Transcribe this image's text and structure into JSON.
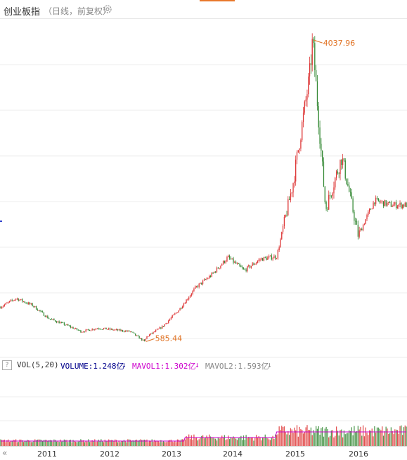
{
  "header": {
    "title": "创业板指",
    "subtitle": "（日线，前复权）",
    "settings_icon": "gear-icon"
  },
  "volume_bar": {
    "help": "?",
    "indicator": "VOL(5,20)",
    "volume": "VOLUME:1.248亿",
    "mavol1": "MAVOL1:1.302亿",
    "mavol2": "MAVOL2:1.593亿",
    "volume_color": "#00008b",
    "mavol1_color": "#cc00cc",
    "mavol2_color": "#888888"
  },
  "x_axis": {
    "scroll_left": "«",
    "ticks": [
      "2011",
      "2012",
      "2013",
      "2014",
      "2015",
      "2016"
    ]
  },
  "colors": {
    "up": "#dd3333",
    "down": "#338833",
    "annotation": "#e07020",
    "grid": "#eeeeee"
  },
  "chart_data": {
    "type": "candlestick",
    "title": "创业板指",
    "period": "daily",
    "adjustment": "forward-adjusted",
    "x": [
      "2010-09",
      "2010-12",
      "2011-03",
      "2011-06",
      "2011-09",
      "2011-12",
      "2012-03",
      "2012-06",
      "2012-09",
      "2012-12",
      "2013-03",
      "2013-06",
      "2013-09",
      "2013-12",
      "2014-03",
      "2014-06",
      "2014-09",
      "2014-12",
      "2015-03",
      "2015-06",
      "2015-09",
      "2015-12",
      "2016-03",
      "2016-06",
      "2016-09"
    ],
    "close": [
      980,
      1080,
      1000,
      850,
      780,
      700,
      740,
      720,
      700,
      640,
      760,
      950,
      1200,
      1350,
      1550,
      1400,
      1530,
      1560,
      2400,
      3600,
      2100,
      2700,
      1800,
      2200,
      2150
    ],
    "high": {
      "value": 4037.96,
      "date": "2015-06"
    },
    "low": {
      "value": 585.44,
      "date": "2012-12"
    },
    "annotations": [
      "4037.96",
      "585.44"
    ],
    "x_ticks": [
      "2011",
      "2012",
      "2013",
      "2014",
      "2015",
      "2016"
    ],
    "ylim": [
      500,
      4200
    ],
    "grid": true,
    "volume": {
      "labels": [
        "VOLUME:1.248亿",
        "MAVOL1:1.302亿",
        "MAVOL2:1.593亿"
      ],
      "volume": 1.248,
      "mavol1": 1.302,
      "mavol2": 1.593,
      "unit": "亿"
    }
  }
}
